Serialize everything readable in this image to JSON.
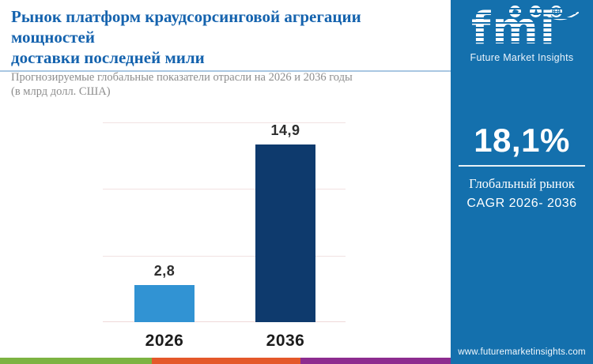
{
  "header": {
    "title_line1": "Рынок платформ краудсорсинговой агрегации мощностей",
    "title_line2": "доставки последней мили",
    "subtitle_line1": "Прогнозируемые глобальные показатели отрасли на 2026 и 2036 годы",
    "subtitle_line2": "(в млрд долл. США)"
  },
  "chart_data": {
    "type": "bar",
    "categories": [
      "2026",
      "2036"
    ],
    "values": [
      2.8,
      14.9
    ],
    "value_labels": [
      "2,8",
      "14,9"
    ],
    "title": "Рынок платформ краудсорсинговой агрегации мощностей доставки последней мили",
    "xlabel": "",
    "ylabel": "",
    "unit": "млрд долл. США",
    "ylim": [
      0,
      15
    ],
    "grid": "horizontal",
    "legend": "none",
    "bar_colors": [
      "#3193d3",
      "#0e3a6d"
    ]
  },
  "panel": {
    "logo": {
      "text": "fmi",
      "tagline": "Future Market Insights",
      "icons": [
        "map-icon",
        "landmark-icon",
        "globe-icon"
      ]
    },
    "stat": {
      "value": "18,1%",
      "line1": "Глобальный рынок",
      "line2": "CAGR 2026- 2036"
    },
    "website": "www.futuremarketinsights.com"
  },
  "colors": {
    "panel_blue": "#1470ad",
    "title_blue": "#1563ae",
    "header_rule": "#a9c7e2",
    "gridline": "#f2e2e2",
    "footer_stripe": [
      "#7cb342",
      "#e4582a",
      "#8d2c8f"
    ]
  }
}
